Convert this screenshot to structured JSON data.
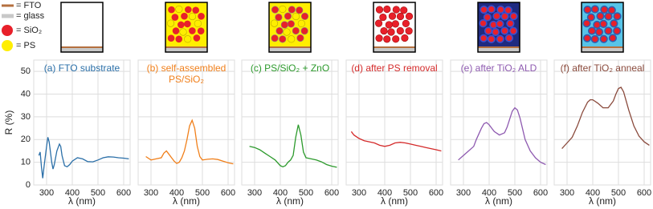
{
  "legend": [
    "= FTO",
    "= glass",
    "= SiO₂",
    "= PS"
  ],
  "chart_data": [
    {
      "type": "line",
      "title": [
        "(a) FTO substrate"
      ],
      "color": "#2a6fa8",
      "xlabel": "λ (nm)",
      "ylabel": "R (%)",
      "show_yticklabels": true,
      "xlim": [
        250,
        625
      ],
      "ylim": [
        0,
        55
      ],
      "xticks": [
        300,
        400,
        500,
        600
      ],
      "yticks": [
        0,
        10,
        20,
        30,
        40,
        50
      ],
      "grid": true,
      "x": [
        270,
        275,
        280,
        285,
        290,
        300,
        305,
        310,
        320,
        325,
        330,
        340,
        350,
        355,
        360,
        370,
        380,
        390,
        400,
        420,
        440,
        460,
        480,
        500,
        520,
        540,
        560,
        580,
        600,
        620
      ],
      "values": [
        13,
        14.5,
        8,
        3,
        8,
        17,
        21,
        19,
        10,
        7,
        9,
        15,
        18,
        17,
        13,
        8.5,
        8,
        9,
        10.5,
        12,
        11.5,
        10.3,
        10.2,
        11,
        12,
        12.4,
        12.3,
        12,
        11.8,
        11.5
      ]
    },
    {
      "type": "line",
      "title": [
        "(b) self-assembled",
        "PS/SiO₂"
      ],
      "color": "#f07f1a",
      "xlabel": "λ (nm)",
      "show_yticklabels": false,
      "xlim": [
        250,
        625
      ],
      "ylim": [
        0,
        55
      ],
      "xticks": [
        300,
        400,
        500,
        600
      ],
      "yticks": [
        0,
        10,
        20,
        30,
        40,
        50
      ],
      "grid": true,
      "x": [
        280,
        300,
        320,
        340,
        350,
        360,
        370,
        380,
        390,
        400,
        410,
        420,
        430,
        440,
        450,
        460,
        470,
        480,
        490,
        500,
        520,
        540,
        560,
        580,
        600,
        620
      ],
      "values": [
        12.5,
        11,
        11.5,
        12,
        14,
        15,
        13.5,
        12,
        10.5,
        9.5,
        10,
        12,
        15,
        20,
        26,
        28.5,
        25,
        17,
        12.5,
        11,
        11.3,
        11.5,
        11.2,
        10.5,
        9.8,
        9.3
      ]
    },
    {
      "type": "line",
      "title": [
        "(c) PS/SiO₂ + ZnO"
      ],
      "color": "#2c9a2c",
      "xlabel": "λ (nm)",
      "show_yticklabels": false,
      "xlim": [
        250,
        625
      ],
      "ylim": [
        0,
        55
      ],
      "xticks": [
        300,
        400,
        500,
        600
      ],
      "yticks": [
        0,
        10,
        20,
        30,
        40,
        50
      ],
      "grid": true,
      "x": [
        280,
        300,
        320,
        340,
        360,
        380,
        400,
        410,
        420,
        430,
        440,
        450,
        460,
        470,
        480,
        490,
        500,
        520,
        540,
        560,
        580,
        600,
        620
      ],
      "values": [
        17,
        16.5,
        15.5,
        14,
        12.5,
        11,
        8.5,
        8,
        8.5,
        10,
        11,
        13,
        21,
        26.5,
        22,
        14.5,
        12,
        11.5,
        11,
        10.2,
        9,
        8.3,
        7.8
      ]
    },
    {
      "type": "line",
      "title": [
        "(d) after PS removal"
      ],
      "color": "#d42a2a",
      "xlabel": "λ (nm)",
      "show_yticklabels": false,
      "xlim": [
        250,
        625
      ],
      "ylim": [
        0,
        55
      ],
      "xticks": [
        300,
        400,
        500,
        600
      ],
      "yticks": [
        0,
        10,
        20,
        30,
        40,
        50
      ],
      "grid": true,
      "x": [
        270,
        280,
        300,
        320,
        340,
        360,
        380,
        400,
        420,
        440,
        460,
        480,
        500,
        520,
        540,
        560,
        580,
        600,
        620
      ],
      "values": [
        23.5,
        22,
        20.5,
        19.5,
        19,
        18.5,
        17.5,
        17,
        17.5,
        18.5,
        18.8,
        18.5,
        18,
        17.5,
        17,
        16.5,
        16,
        15.5,
        15
      ]
    },
    {
      "type": "line",
      "title": [
        "(e) after TiO₂ ALD"
      ],
      "color": "#8e5ab0",
      "xlabel": "λ (nm)",
      "show_yticklabels": false,
      "xlim": [
        250,
        625
      ],
      "ylim": [
        0,
        55
      ],
      "xticks": [
        300,
        400,
        500,
        600
      ],
      "yticks": [
        0,
        10,
        20,
        30,
        40,
        50
      ],
      "grid": true,
      "x": [
        280,
        300,
        320,
        340,
        350,
        360,
        370,
        380,
        390,
        400,
        410,
        420,
        440,
        460,
        470,
        480,
        490,
        500,
        510,
        520,
        540,
        560,
        580,
        600,
        620
      ],
      "values": [
        11,
        13,
        15,
        17,
        20,
        22.5,
        25,
        27,
        27.5,
        26.5,
        25,
        23.5,
        22,
        23,
        25.5,
        29,
        32.5,
        34,
        33,
        29.5,
        20,
        15,
        12,
        10,
        9
      ]
    },
    {
      "type": "line",
      "title": [
        "(f) after TiO₂ anneal"
      ],
      "color": "#8a4a3c",
      "xlabel": "λ (nm)",
      "show_yticklabels": false,
      "xlim": [
        250,
        625
      ],
      "ylim": [
        0,
        55
      ],
      "xticks": [
        300,
        400,
        500,
        600
      ],
      "yticks": [
        0,
        10,
        20,
        30,
        40,
        50
      ],
      "grid": true,
      "x": [
        280,
        300,
        320,
        340,
        360,
        380,
        390,
        400,
        420,
        440,
        460,
        480,
        490,
        500,
        510,
        520,
        540,
        560,
        580,
        600,
        620
      ],
      "values": [
        16,
        18.5,
        21,
        26,
        32,
        36.5,
        37.5,
        37.5,
        36,
        34,
        34,
        37,
        40,
        42.5,
        43,
        41,
        33,
        26,
        21.5,
        19,
        17.5
      ]
    }
  ]
}
